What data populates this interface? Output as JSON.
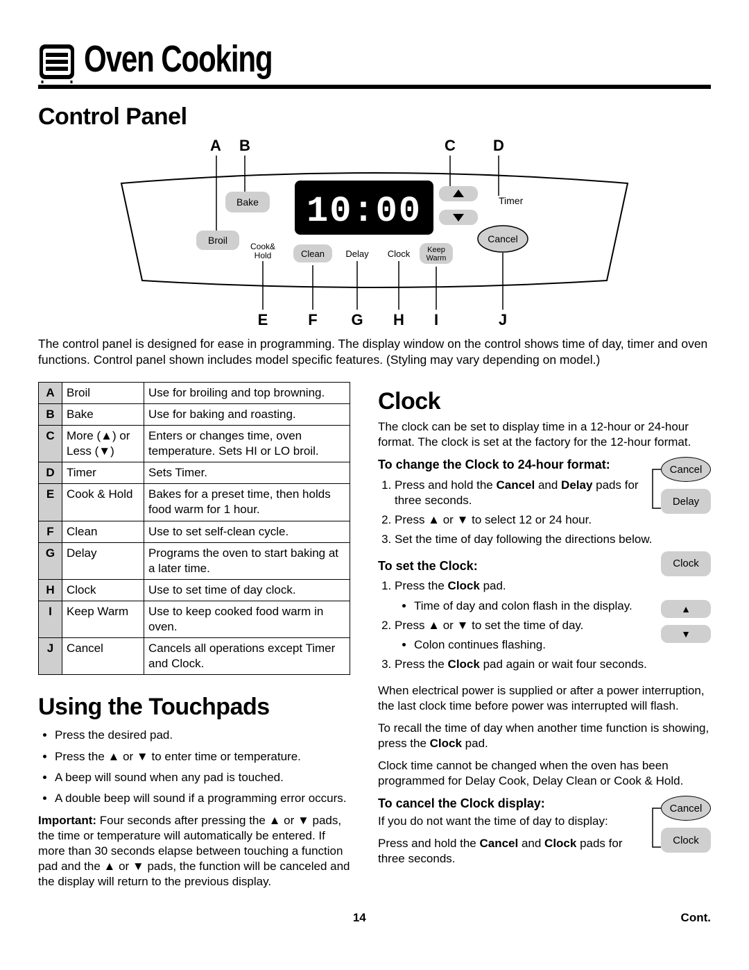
{
  "page": {
    "number": "14",
    "cont": "Cont."
  },
  "title": "Oven Cooking",
  "sections": {
    "control_panel": {
      "heading": "Control Panel",
      "top_labels": {
        "A": "A",
        "B": "B",
        "C": "C",
        "D": "D"
      },
      "bottom_labels": {
        "E": "E",
        "F": "F",
        "G": "G",
        "H": "H",
        "I": "I",
        "J": "J"
      },
      "display": "10:00",
      "pads": {
        "bake": "Bake",
        "broil": "Broil",
        "cookhold": "Cook&\nHold",
        "clean": "Clean",
        "delay": "Delay",
        "clock": "Clock",
        "keepwarm": "Keep\nWarm",
        "timer": "Timer",
        "cancel": "Cancel"
      },
      "intro": "The control panel is designed for ease in programming. The display window on the control shows time of day, timer and oven functions. Control panel shown includes model specific features. (Styling may vary depending on model.)"
    },
    "control_table": {
      "rows": [
        {
          "letter": "A",
          "name": "Broil",
          "desc": "Use for broiling and top browning."
        },
        {
          "letter": "B",
          "name": "Bake",
          "desc": "Use for baking and roasting."
        },
        {
          "letter": "C",
          "name": "More (▲) or Less (▼)",
          "desc": "Enters or changes time, oven temperature.  Sets HI or LO broil."
        },
        {
          "letter": "D",
          "name": "Timer",
          "desc": "Sets Timer."
        },
        {
          "letter": "E",
          "name": "Cook & Hold",
          "desc": "Bakes for a preset time, then holds food warm for 1 hour."
        },
        {
          "letter": "F",
          "name": "Clean",
          "desc": "Use to set self-clean cycle."
        },
        {
          "letter": "G",
          "name": "Delay",
          "desc": "Programs the oven to start baking at a later time."
        },
        {
          "letter": "H",
          "name": "Clock",
          "desc": "Use to set time of day clock."
        },
        {
          "letter": "I",
          "name": "Keep Warm",
          "desc": "Use to keep cooked food warm in oven."
        },
        {
          "letter": "J",
          "name": "Cancel",
          "desc": "Cancels all operations except Timer and Clock."
        }
      ]
    },
    "touchpads": {
      "heading": "Using the Touchpads",
      "bullets": [
        "Press the desired pad.",
        "Press the ▲ or ▼ to enter time or temperature.",
        "A beep will sound when any pad is touched.",
        "A double beep will sound if a programming error occurs."
      ],
      "important_label": "Important:",
      "important_body": " Four seconds after pressing the ▲ or ▼ pads, the time or temperature will automatically be entered.  If more than 30 seconds elapse between touching a function pad and the ▲ or ▼ pads, the function will be canceled and the display will return to the previous display."
    },
    "clock": {
      "heading": "Clock",
      "intro": "The clock can be set to display time in a 12-hour or 24-hour format.  The clock is set at the factory for the 12-hour format.",
      "change24_heading": "To change the Clock to 24-hour format:",
      "change24_steps_pre": "Press and hold the ",
      "change24_steps_and": " and ",
      "change24_steps_post": " pads for three seconds.",
      "change24_step2": "Press ▲ or ▼ to select 12 or 24 hour.",
      "change24_step3": "Set the time of day following the directions below.",
      "setclock_heading": "To set the Clock:",
      "setclock_step1_pre": "Press the ",
      "setclock_step1_post": " pad.",
      "setclock_sub1": "Time of day and colon flash in the display.",
      "setclock_step2": "Press ▲ or ▼ to set the time of day.",
      "setclock_sub2": "Colon continues flashing.",
      "setclock_step3_pre": "Press the ",
      "setclock_step3_post": " pad again or wait four seconds.",
      "para1": "When electrical power is supplied or after a power interruption, the last clock time before power was interrupted will flash.",
      "para2_pre": "To recall the time of day when another time function is showing, press the ",
      "para2_post": " pad.",
      "para3": "Clock time cannot be changed when the oven has been programmed for Delay Cook, Delay Clean or Cook & Hold.",
      "cancel_heading": "To cancel the Clock display:",
      "cancel_body": "If you do not want the time of day to display:",
      "cancel_body2_pre": "Press and hold the ",
      "cancel_body2_mid": " and ",
      "cancel_body2_post": " pads for three seconds.",
      "pad_cancel": "Cancel",
      "pad_delay": "Delay",
      "pad_clock": "Clock"
    }
  },
  "style": {
    "bg": "#ffffff",
    "text": "#000000",
    "pad_fill": "#cfcfcf",
    "underline_w": 6,
    "title_fontsize": 54
  }
}
